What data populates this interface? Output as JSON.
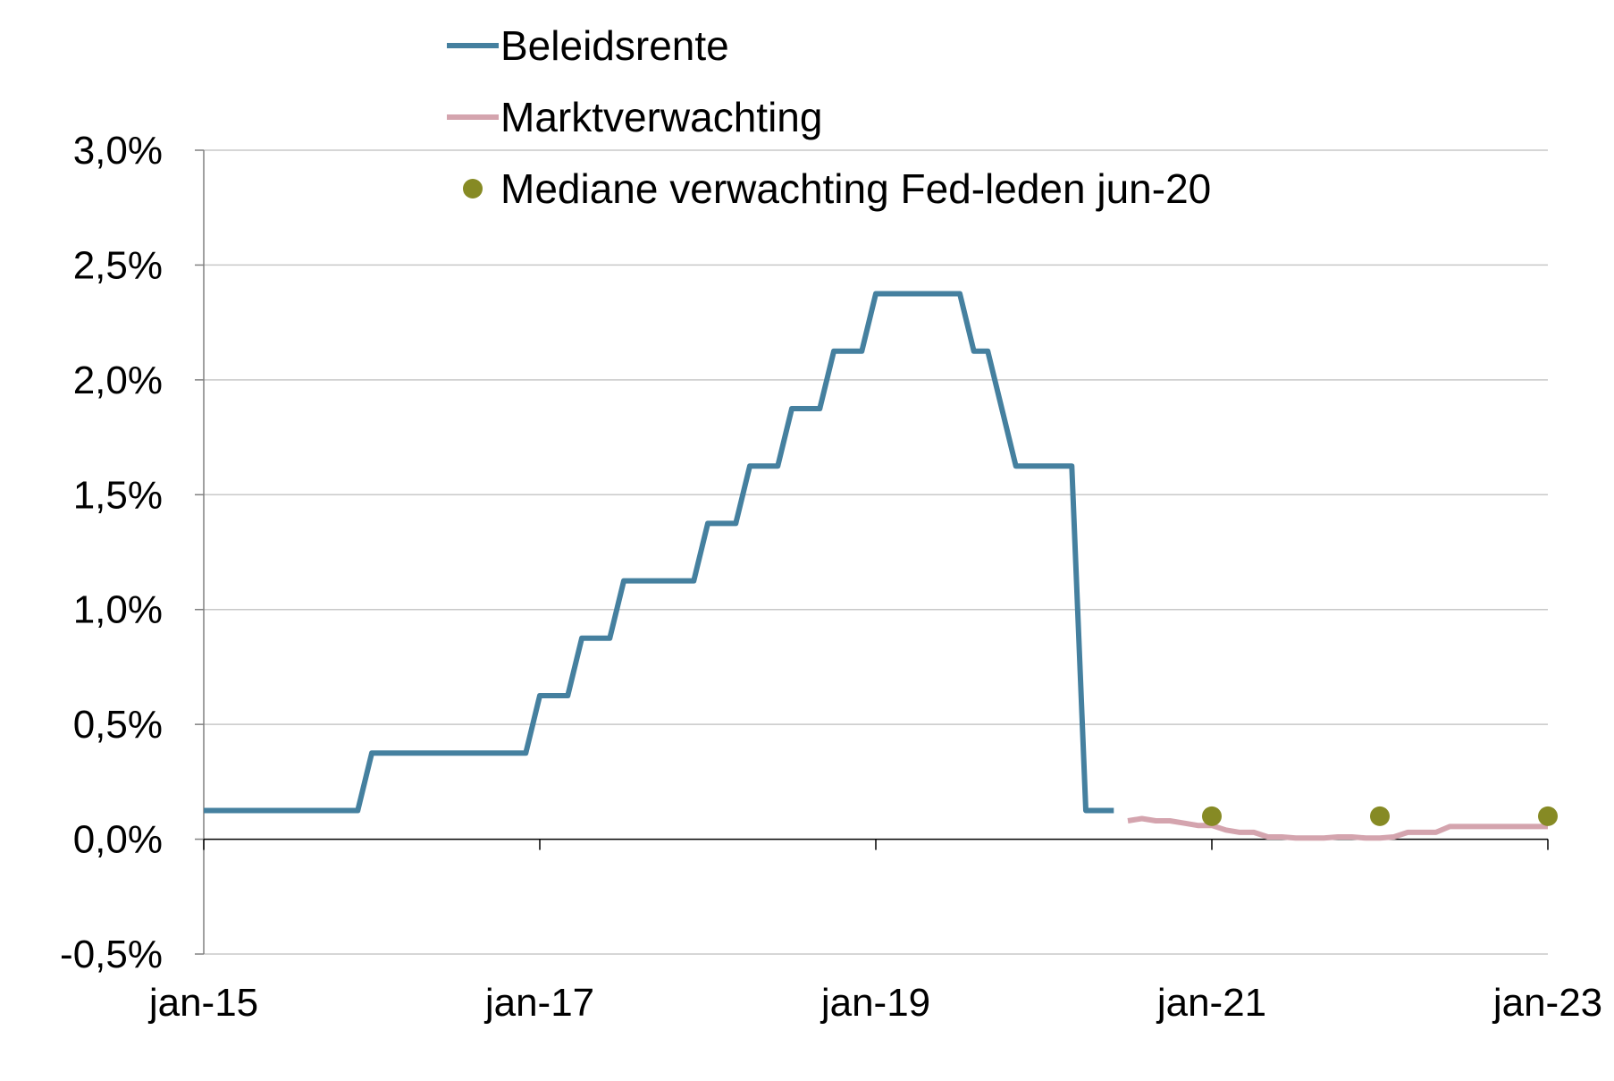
{
  "chart_data": {
    "type": "line",
    "y_format": "percent",
    "ylim": [
      -0.5,
      3.0
    ],
    "xlim": [
      "2015-01",
      "2023-01"
    ],
    "grid": "horizontal",
    "legend_position": "top-center",
    "y_tick_values": [
      -0.5,
      0.0,
      0.5,
      1.0,
      1.5,
      2.0,
      2.5,
      3.0
    ],
    "y_tick_labels": [
      "-0,5%",
      "0,0%",
      "0,5%",
      "1,0%",
      "1,5%",
      "2,0%",
      "2,5%",
      "3,0%"
    ],
    "x_tick_values": [
      "2015-01",
      "2017-01",
      "2019-01",
      "2021-01",
      "2023-01"
    ],
    "x_tick_labels": [
      "jan-15",
      "jan-17",
      "jan-19",
      "jan-21",
      "jan-23"
    ],
    "series": [
      {
        "name": "Beleidsrente",
        "kind": "line",
        "color": "#45809F",
        "points": [
          [
            "2015-01",
            0.125
          ],
          [
            "2015-12",
            0.125
          ],
          [
            "2016-01",
            0.375
          ],
          [
            "2016-12",
            0.375
          ],
          [
            "2017-01",
            0.625
          ],
          [
            "2017-03",
            0.625
          ],
          [
            "2017-04",
            0.875
          ],
          [
            "2017-06",
            0.875
          ],
          [
            "2017-07",
            1.125
          ],
          [
            "2017-12",
            1.125
          ],
          [
            "2018-01",
            1.375
          ],
          [
            "2018-03",
            1.375
          ],
          [
            "2018-04",
            1.625
          ],
          [
            "2018-06",
            1.625
          ],
          [
            "2018-07",
            1.875
          ],
          [
            "2018-09",
            1.875
          ],
          [
            "2018-10",
            2.125
          ],
          [
            "2018-12",
            2.125
          ],
          [
            "2019-01",
            2.375
          ],
          [
            "2019-07",
            2.375
          ],
          [
            "2019-08",
            2.125
          ],
          [
            "2019-09",
            2.125
          ],
          [
            "2019-10",
            1.875
          ],
          [
            "2019-11",
            1.625
          ],
          [
            "2020-03",
            1.625
          ],
          [
            "2020-04",
            0.125
          ],
          [
            "2020-06",
            0.125
          ]
        ]
      },
      {
        "name": "Marktverwachting",
        "kind": "line",
        "color": "#D4A4AE",
        "points": [
          [
            "2020-07",
            0.08
          ],
          [
            "2020-08",
            0.09
          ],
          [
            "2020-09",
            0.08
          ],
          [
            "2020-10",
            0.08
          ],
          [
            "2020-11",
            0.07
          ],
          [
            "2020-12",
            0.06
          ],
          [
            "2021-01",
            0.06
          ],
          [
            "2021-02",
            0.04
          ],
          [
            "2021-03",
            0.03
          ],
          [
            "2021-04",
            0.03
          ],
          [
            "2021-05",
            0.01
          ],
          [
            "2021-06",
            0.01
          ],
          [
            "2021-07",
            0.005
          ],
          [
            "2021-08",
            0.005
          ],
          [
            "2021-09",
            0.005
          ],
          [
            "2021-10",
            0.01
          ],
          [
            "2021-11",
            0.01
          ],
          [
            "2021-12",
            0.005
          ],
          [
            "2022-01",
            0.005
          ],
          [
            "2022-02",
            0.01
          ],
          [
            "2022-03",
            0.03
          ],
          [
            "2022-04",
            0.03
          ],
          [
            "2022-05",
            0.03
          ],
          [
            "2022-06",
            0.055
          ],
          [
            "2022-07",
            0.055
          ],
          [
            "2022-08",
            0.055
          ],
          [
            "2022-09",
            0.055
          ],
          [
            "2022-10",
            0.055
          ],
          [
            "2022-11",
            0.055
          ],
          [
            "2022-12",
            0.055
          ],
          [
            "2023-01",
            0.055
          ]
        ]
      },
      {
        "name": "Mediane verwachting  Fed-leden jun-20",
        "kind": "scatter",
        "color": "#868A24",
        "points": [
          [
            "2021-01",
            0.1
          ],
          [
            "2022-01",
            0.1
          ],
          [
            "2023-01",
            0.1
          ]
        ]
      }
    ]
  }
}
